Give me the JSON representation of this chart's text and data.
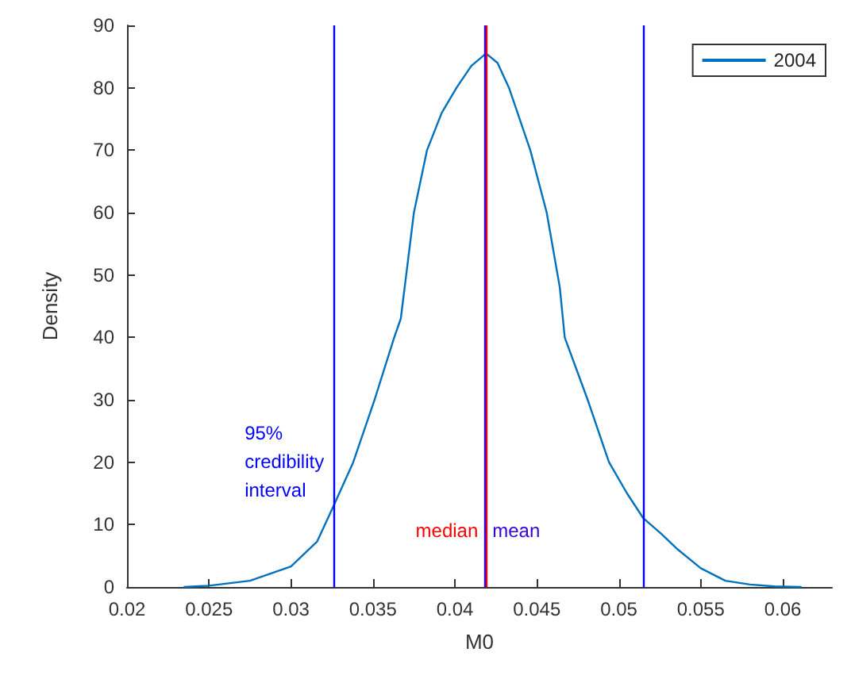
{
  "chart_data": {
    "type": "line",
    "xlabel": "M0",
    "ylabel": "Density",
    "x": [
      0.0235,
      0.025,
      0.0275,
      0.03,
      0.0316,
      0.0326,
      0.0338,
      0.0351,
      0.0363,
      0.0367,
      0.0375,
      0.0383,
      0.0392,
      0.0401,
      0.041,
      0.0419,
      0.0426,
      0.0433,
      0.0446,
      0.0456,
      0.0464,
      0.0467,
      0.0481,
      0.0494,
      0.0505,
      0.0515,
      0.0526,
      0.0536,
      0.055,
      0.0565,
      0.058,
      0.0595,
      0.0611
    ],
    "series": [
      {
        "name": "2004",
        "color": "#0072bd",
        "values": [
          0,
          0.2,
          1,
          3.3,
          7.3,
          13,
          20,
          30,
          40,
          43,
          60,
          70,
          76,
          80,
          83.5,
          85.5,
          84,
          80,
          70,
          60,
          48,
          40,
          30,
          20,
          15,
          11,
          8.5,
          6,
          3,
          1,
          0.4,
          0.1,
          0
        ]
      }
    ],
    "xlim": [
      0.02,
      0.063
    ],
    "xticks": [
      0.02,
      0.025,
      0.03,
      0.035,
      0.04,
      0.045,
      0.05,
      0.055,
      0.06
    ],
    "ylim": [
      0,
      90
    ],
    "yticks": [
      0,
      10,
      20,
      30,
      40,
      50,
      60,
      70,
      80,
      90
    ],
    "ref_lines": [
      {
        "axis": "x",
        "value": 0.0326,
        "label": "95% credibility interval",
        "color": "#0000ff"
      },
      {
        "axis": "x",
        "value": 0.0515,
        "color": "#0000ff"
      },
      {
        "axis": "x",
        "value": 0.0419,
        "label": "median",
        "color": "#ff0000"
      },
      {
        "axis": "x",
        "value": 0.0418,
        "label": "mean",
        "color": "#3300dd"
      }
    ],
    "grid": false,
    "legend": "top right",
    "marker": "none",
    "line_style": "solid"
  }
}
